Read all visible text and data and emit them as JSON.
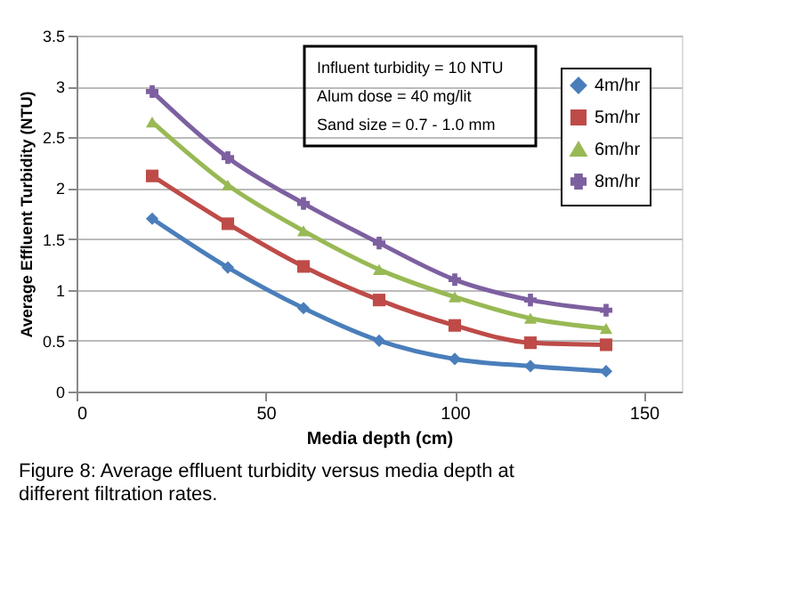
{
  "chart_data": {
    "type": "line",
    "xlabel": "Media depth (cm)",
    "ylabel": "Average Effluent Turbidity (NTU)",
    "x": [
      20,
      40,
      60,
      80,
      100,
      120,
      140
    ],
    "series": [
      {
        "name": "4m/hr",
        "color": "#4a7ebb",
        "marker": "diamond",
        "values": [
          1.7,
          1.22,
          0.82,
          0.5,
          0.32,
          0.25,
          0.2
        ]
      },
      {
        "name": "5m/hr",
        "color": "#be4b48",
        "marker": "square",
        "values": [
          2.12,
          1.65,
          1.23,
          0.9,
          0.65,
          0.48,
          0.46
        ]
      },
      {
        "name": "6m/hr",
        "color": "#98b954",
        "marker": "triangle",
        "values": [
          2.65,
          2.03,
          1.58,
          1.2,
          0.93,
          0.72,
          0.62
        ]
      },
      {
        "name": "8m/hr",
        "color": "#7d60a0",
        "marker": "cross",
        "values": [
          2.95,
          2.3,
          1.85,
          1.46,
          1.1,
          0.9,
          0.8
        ]
      }
    ],
    "xlim": [
      0,
      160
    ],
    "xticks": [
      0,
      50,
      100,
      150
    ],
    "ylim": [
      0,
      3.5
    ],
    "yticks": [
      0,
      0.5,
      1,
      1.5,
      2,
      2.5,
      3,
      3.5
    ],
    "grid": "y",
    "legend": "top right",
    "line_style": "solid",
    "annotations": [
      "Influent turbidity = 10 NTU",
      "Alum dose = 40 mg/lit",
      "Sand size = 0.7 - 1.0 mm",
      "Figure 8: Average effluent turbidity versus media depth at different filtration rates."
    ]
  }
}
